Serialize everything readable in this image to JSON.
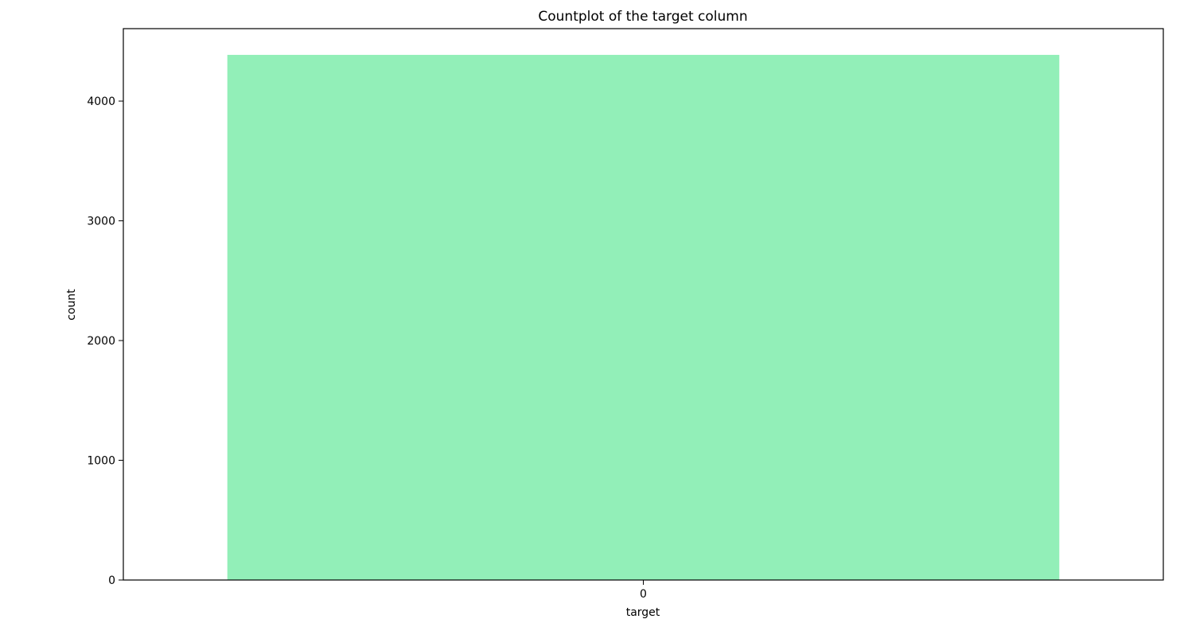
{
  "chart_data": {
    "type": "bar",
    "title": "Countplot of the target column",
    "xlabel": "target",
    "ylabel": "count",
    "categories": [
      "0"
    ],
    "values": [
      4386
    ],
    "ylim": [
      0,
      4605
    ],
    "yticks": [
      0,
      1000,
      2000,
      3000,
      4000
    ],
    "grid": false,
    "legend": "none",
    "bar_color": "#92efb8"
  }
}
